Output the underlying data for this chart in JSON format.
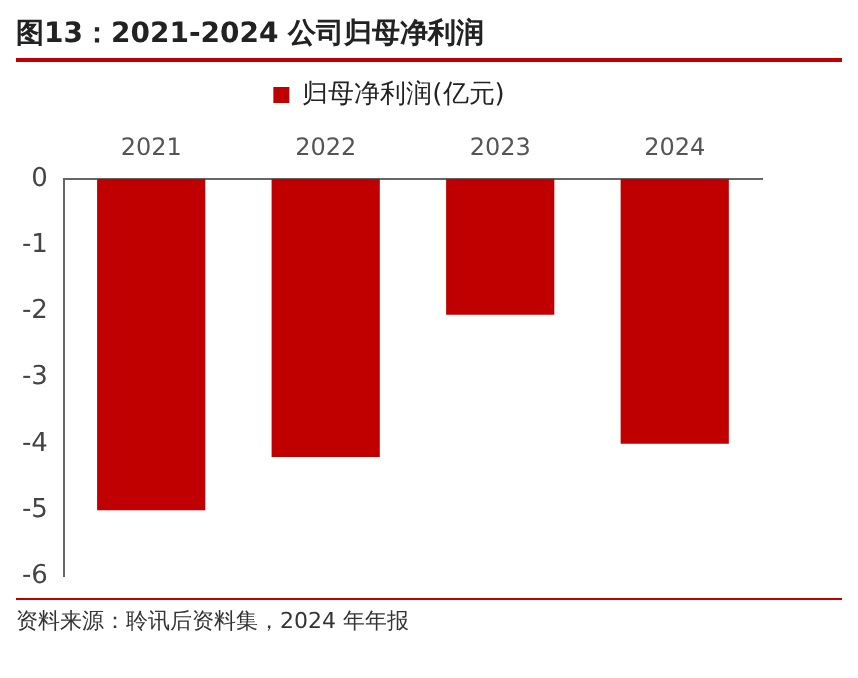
{
  "chart_data": {
    "type": "bar",
    "title": "图13：2021-2024 公司归母净利润",
    "categories": [
      "2021",
      "2022",
      "2023",
      "2024"
    ],
    "series": [
      {
        "name": "归母净利润(亿元)",
        "color": "#c00000",
        "values": [
          -5.0,
          -4.2,
          -2.05,
          -4.0
        ]
      }
    ],
    "ylim": [
      -6,
      0
    ],
    "yticks": [
      0,
      -1,
      -2,
      -3,
      -4,
      -5,
      -6
    ],
    "grid": false,
    "legend": "top",
    "annotations": [
      "资料来源：聆讯后资料集，2024 年年报"
    ]
  }
}
